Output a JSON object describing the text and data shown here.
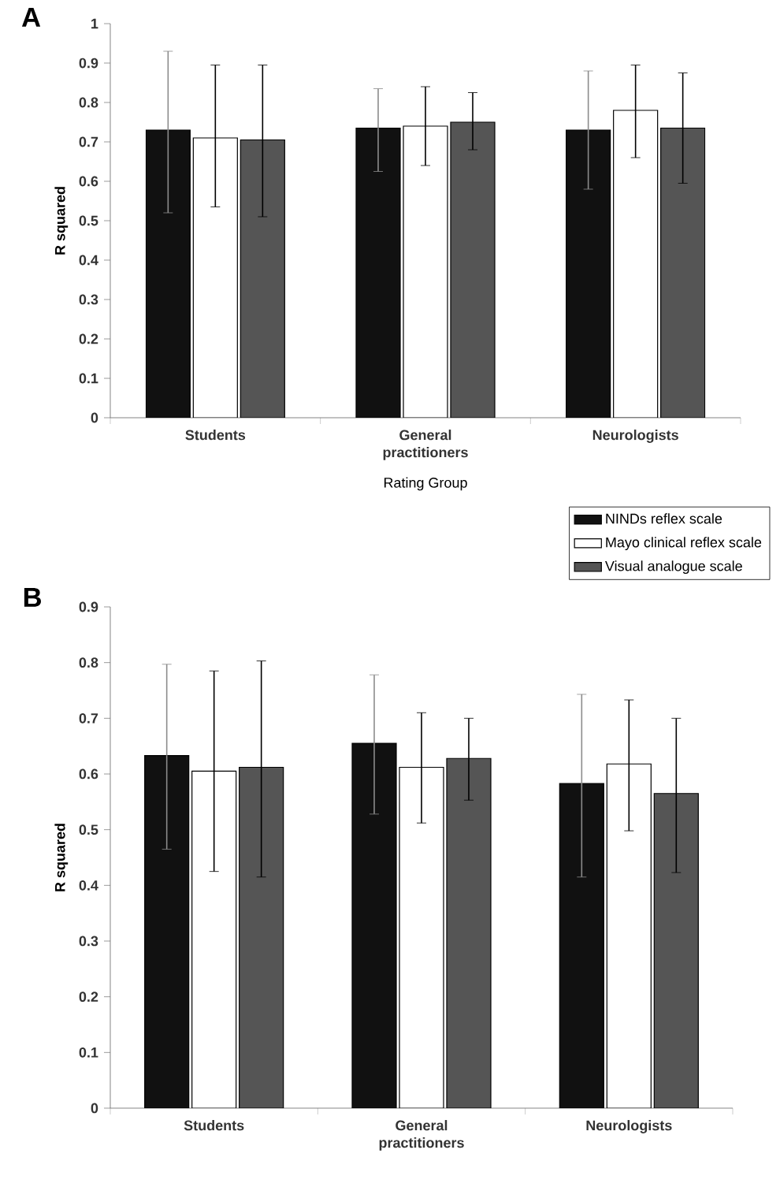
{
  "chart_data": [
    {
      "type": "bar",
      "title": "A",
      "xlabel": "Rating Group",
      "ylabel": "R squared",
      "categories": [
        "Students",
        "General practitioners",
        "Neurologists"
      ],
      "series": [
        {
          "color": "#111111",
          "values": [
            0.73,
            0.735,
            0.73
          ],
          "errors": [
            [
              0.52,
              0.93
            ],
            [
              0.625,
              0.835
            ],
            [
              0.58,
              0.88
            ]
          ]
        },
        {
          "color": "#ffffff",
          "values": [
            0.71,
            0.74,
            0.78
          ],
          "errors": [
            [
              0.535,
              0.895
            ],
            [
              0.64,
              0.84
            ],
            [
              0.66,
              0.895
            ]
          ]
        },
        {
          "color": "#555555",
          "values": [
            0.705,
            0.75,
            0.735
          ],
          "errors": [
            [
              0.51,
              0.895
            ],
            [
              0.68,
              0.825
            ],
            [
              0.595,
              0.875
            ]
          ]
        }
      ],
      "ylim": [
        0,
        1
      ],
      "yticks": [
        0,
        0.1,
        0.2,
        0.3,
        0.4,
        0.5,
        0.6,
        0.7,
        0.8,
        0.9,
        1
      ]
    },
    {
      "type": "bar",
      "title": "B",
      "ylabel": "R squared",
      "categories": [
        "Students",
        "General practitioners",
        "Neurologists"
      ],
      "series": [
        {
          "name": "NINDs reflex scale",
          "color": "#111111",
          "values": [
            0.633,
            0.655,
            0.583
          ],
          "errors": [
            [
              0.465,
              0.797
            ],
            [
              0.528,
              0.778
            ],
            [
              0.415,
              0.743
            ]
          ]
        },
        {
          "name": "Mayo clinical reflex scale",
          "color": "#ffffff",
          "values": [
            0.605,
            0.612,
            0.618
          ],
          "errors": [
            [
              0.425,
              0.785
            ],
            [
              0.512,
              0.71
            ],
            [
              0.498,
              0.733
            ]
          ]
        },
        {
          "name": "Visual analogue scale",
          "color": "#555555",
          "values": [
            0.612,
            0.628,
            0.565
          ],
          "errors": [
            [
              0.415,
              0.803
            ],
            [
              0.553,
              0.7
            ],
            [
              0.423,
              0.7
            ]
          ]
        }
      ],
      "ylim": [
        0,
        0.9
      ],
      "yticks": [
        0,
        0.1,
        0.2,
        0.3,
        0.4,
        0.5,
        0.6,
        0.7,
        0.8,
        0.9
      ],
      "legend": "top right"
    }
  ]
}
